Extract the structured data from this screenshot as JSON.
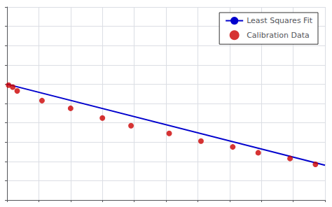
{
  "chart_data": {
    "type": "scatter",
    "series": [
      {
        "name": "Least Squares Fit",
        "type": "line",
        "color": "#0000cd",
        "x": [
          0.0,
          10.0
        ],
        "values": [
          6.0,
          1.8
        ]
      },
      {
        "name": "Calibration Data",
        "type": "scatter",
        "color": "#cc0000",
        "x": [
          0.05,
          0.18,
          0.32,
          1.1,
          2.0,
          3.0,
          3.9,
          5.1,
          6.1,
          7.1,
          7.9,
          8.9,
          9.7
        ],
        "values": [
          5.95,
          5.85,
          5.65,
          5.15,
          4.75,
          4.25,
          3.85,
          3.45,
          3.05,
          2.75,
          2.45,
          2.15,
          1.85
        ]
      }
    ],
    "xlim": [
      0,
      10
    ],
    "ylim": [
      0,
      10
    ],
    "xticks": [
      0,
      1,
      2,
      3,
      4,
      5,
      6,
      7,
      8,
      9,
      10
    ],
    "yticks": [
      0,
      1,
      2,
      3,
      4,
      5,
      6,
      7,
      8,
      9,
      10
    ],
    "grid": true,
    "legend": "upper right",
    "tick_labels": false
  }
}
